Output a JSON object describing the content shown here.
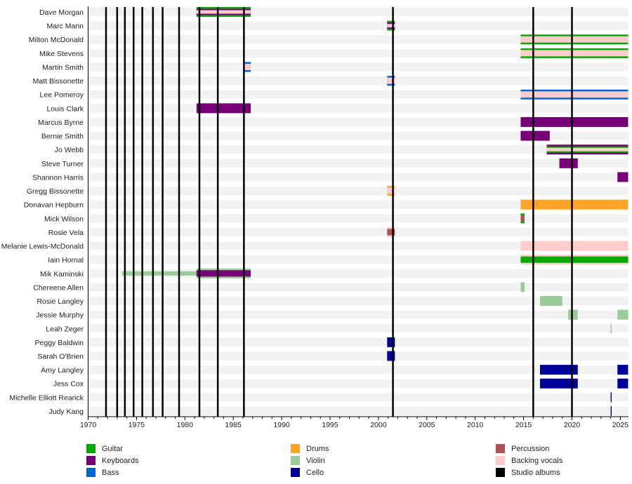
{
  "chart_data": {
    "type": "timeline",
    "xlim": [
      1970,
      2025.8
    ],
    "x_ticks": [
      1970,
      1975,
      1980,
      1985,
      1990,
      1995,
      2000,
      2005,
      2010,
      2015,
      2020,
      2025
    ],
    "roles": {
      "guitar": {
        "label": "Guitar",
        "color": "#00aa00"
      },
      "keyboards": {
        "label": "Keyboards",
        "color": "#770077"
      },
      "bass": {
        "label": "Bass",
        "color": "#0066cc"
      },
      "drums": {
        "label": "Drums",
        "color": "#ffa329"
      },
      "violin": {
        "label": "Violin",
        "color": "#99cc99"
      },
      "cello": {
        "label": "Cello",
        "color": "#000099"
      },
      "percussion": {
        "label": "Percussion",
        "color": "#aa5555"
      },
      "vocals": {
        "label": "Backing vocals",
        "color": "#ffcccc"
      },
      "albums": {
        "label": "Studio albums",
        "color": "#000000"
      }
    },
    "legend_order": [
      "guitar",
      "keyboards",
      "bass",
      "drums",
      "violin",
      "cello",
      "percussion",
      "vocals",
      "albums"
    ],
    "legend_placement": "bottom",
    "studio_albums": [
      1971.85,
      1973.0,
      1973.8,
      1974.7,
      1975.6,
      1976.7,
      1977.7,
      1979.4,
      1981.5,
      1983.4,
      1986.1,
      2001.5,
      2016.0,
      2020.0
    ],
    "members": [
      {
        "name": "Dave Morgan",
        "periods": [
          {
            "start": 1981.2,
            "end": 1986.8,
            "roles": [
              "guitar",
              "keyboards",
              "vocals"
            ]
          }
        ]
      },
      {
        "name": "Marc Mann",
        "periods": [
          {
            "start": 2000.9,
            "end": 2001.7,
            "roles": [
              "guitar",
              "keyboards",
              "vocals"
            ]
          }
        ]
      },
      {
        "name": "Milton McDonald",
        "periods": [
          {
            "start": 2014.7,
            "end": 2025.8,
            "roles": [
              "guitar",
              "vocals"
            ]
          }
        ]
      },
      {
        "name": "Mike Stevens",
        "periods": [
          {
            "start": 2014.7,
            "end": 2025.8,
            "roles": [
              "guitar",
              "vocals"
            ]
          }
        ]
      },
      {
        "name": "Martin Smith",
        "periods": [
          {
            "start": 1986.2,
            "end": 1986.8,
            "roles": [
              "bass",
              "vocals"
            ]
          }
        ]
      },
      {
        "name": "Matt Bissonette",
        "periods": [
          {
            "start": 2000.9,
            "end": 2001.7,
            "roles": [
              "bass",
              "vocals"
            ]
          }
        ]
      },
      {
        "name": "Lee Pomeroy",
        "periods": [
          {
            "start": 2014.7,
            "end": 2025.8,
            "roles": [
              "bass",
              "vocals"
            ]
          }
        ]
      },
      {
        "name": "Louis Clark",
        "periods": [
          {
            "start": 1981.2,
            "end": 1986.8,
            "roles": [
              "keyboards"
            ]
          }
        ]
      },
      {
        "name": "Marcus Byrne",
        "periods": [
          {
            "start": 2014.7,
            "end": 2025.8,
            "roles": [
              "keyboards"
            ]
          }
        ]
      },
      {
        "name": "Bernie Smith",
        "periods": [
          {
            "start": 2014.7,
            "end": 2017.7,
            "roles": [
              "keyboards"
            ]
          }
        ]
      },
      {
        "name": "Jo Webb",
        "periods": [
          {
            "start": 2017.4,
            "end": 2025.8,
            "roles": [
              "keyboards",
              "guitar",
              "vocals"
            ]
          }
        ]
      },
      {
        "name": "Steve Turner",
        "periods": [
          {
            "start": 2018.7,
            "end": 2020.6,
            "roles": [
              "keyboards"
            ]
          }
        ]
      },
      {
        "name": "Shannon Harris",
        "periods": [
          {
            "start": 2024.7,
            "end": 2025.8,
            "roles": [
              "keyboards"
            ]
          }
        ]
      },
      {
        "name": "Gregg Bissonette",
        "periods": [
          {
            "start": 2000.9,
            "end": 2001.7,
            "roles": [
              "drums",
              "vocals"
            ]
          }
        ]
      },
      {
        "name": "Donavan Hepburn",
        "periods": [
          {
            "start": 2014.7,
            "end": 2025.8,
            "roles": [
              "drums"
            ]
          }
        ]
      },
      {
        "name": "Mick Wilson",
        "periods": [
          {
            "start": 2014.7,
            "end": 2015.1,
            "roles": [
              "guitar",
              "percussion"
            ]
          }
        ]
      },
      {
        "name": "Rosie Vela",
        "periods": [
          {
            "start": 2000.9,
            "end": 2001.7,
            "roles": [
              "vocals",
              "percussion"
            ]
          }
        ]
      },
      {
        "name": "Melanie Lewis-McDonald",
        "periods": [
          {
            "start": 2014.7,
            "end": 2025.8,
            "roles": [
              "vocals"
            ]
          }
        ]
      },
      {
        "name": "Iain Hornal",
        "periods": [
          {
            "start": 2014.7,
            "end": 2025.8,
            "roles": [
              "vocals",
              "guitar"
            ]
          }
        ]
      },
      {
        "name": "Mik Kaminski",
        "periods": [
          {
            "start": 1973.5,
            "end": 1981.2,
            "roles": [
              "violin"
            ],
            "minor": true
          },
          {
            "start": 1981.2,
            "end": 1986.8,
            "roles": [
              "violin",
              "keyboards"
            ]
          }
        ]
      },
      {
        "name": "Chereene Allen",
        "periods": [
          {
            "start": 2014.7,
            "end": 2015.1,
            "roles": [
              "violin"
            ]
          }
        ]
      },
      {
        "name": "Rosie Langley",
        "periods": [
          {
            "start": 2016.7,
            "end": 2019.0,
            "roles": [
              "violin"
            ]
          }
        ]
      },
      {
        "name": "Jessie Murphy",
        "periods": [
          {
            "start": 2019.6,
            "end": 2020.6,
            "roles": [
              "violin"
            ]
          },
          {
            "start": 2024.7,
            "end": 2025.8,
            "roles": [
              "violin"
            ]
          }
        ]
      },
      {
        "name": "Leah Zeger",
        "periods": [
          {
            "start": 2024.0,
            "end": 2024.1,
            "roles": [
              "violin"
            ]
          }
        ]
      },
      {
        "name": "Peggy Baldwin",
        "periods": [
          {
            "start": 2000.9,
            "end": 2001.7,
            "roles": [
              "cello"
            ]
          }
        ]
      },
      {
        "name": "Sarah O'Brien",
        "periods": [
          {
            "start": 2000.9,
            "end": 2001.7,
            "roles": [
              "cello"
            ]
          }
        ]
      },
      {
        "name": "Amy Langley",
        "periods": [
          {
            "start": 2016.7,
            "end": 2020.6,
            "roles": [
              "cello"
            ]
          },
          {
            "start": 2024.7,
            "end": 2025.8,
            "roles": [
              "cello"
            ]
          }
        ]
      },
      {
        "name": "Jess Cox",
        "periods": [
          {
            "start": 2016.7,
            "end": 2020.6,
            "roles": [
              "cello"
            ]
          },
          {
            "start": 2024.7,
            "end": 2025.8,
            "roles": [
              "cello"
            ]
          }
        ]
      },
      {
        "name": "Michelle Elliott Rearick",
        "periods": [
          {
            "start": 2024.0,
            "end": 2024.1,
            "roles": [
              "cello"
            ]
          }
        ]
      },
      {
        "name": "Judy Kang",
        "periods": [
          {
            "start": 2024.0,
            "end": 2024.1,
            "roles": [
              "cello"
            ]
          }
        ]
      }
    ]
  }
}
